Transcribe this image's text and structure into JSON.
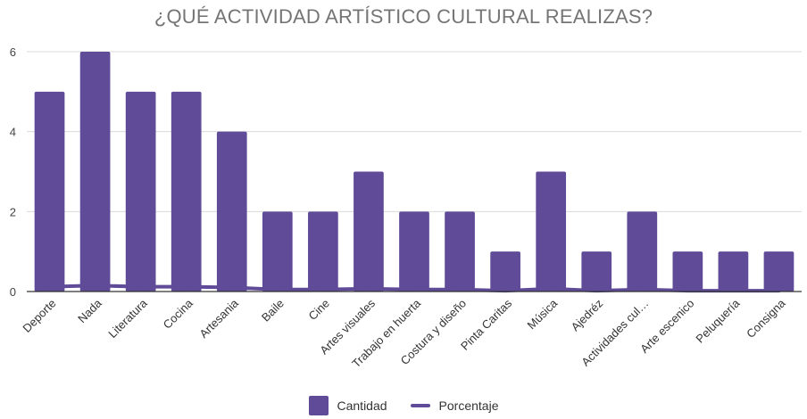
{
  "chart_data": {
    "type": "bar",
    "title": "¿QUÉ ACTIVIDAD ARTÍSTICO CULTURAL REALIZAS?",
    "categories": [
      "Deporte",
      "Nada",
      "Literatura",
      "Cocina",
      "Artesania",
      "Baile",
      "Cine",
      "Artes visuales",
      "Trabajo en huerta",
      "Costura y diseño",
      "Pinta Caritas",
      "Música",
      "Ajedréz",
      "Actividades cul…",
      "Arte escenico",
      "Peluquería",
      "Consigna"
    ],
    "series": [
      {
        "name": "Cantidad",
        "type": "bar",
        "values": [
          5,
          6,
          5,
          5,
          4,
          2,
          2,
          3,
          2,
          2,
          1,
          3,
          1,
          2,
          1,
          1,
          1
        ]
      },
      {
        "name": "Porcentaje",
        "type": "line",
        "values": [
          0.12,
          0.15,
          0.12,
          0.12,
          0.1,
          0.05,
          0.05,
          0.07,
          0.05,
          0.05,
          0.02,
          0.07,
          0.02,
          0.05,
          0.02,
          0.02,
          0.02
        ]
      }
    ],
    "yticks": [
      0,
      2,
      4,
      6
    ],
    "ylim": [
      0,
      6
    ],
    "grid": true,
    "legend_position": "bottom",
    "colors": {
      "bar": "#5f4b97",
      "line": "#5f4b97",
      "grid": "#d9d9d9",
      "baseline": "#333333"
    }
  }
}
